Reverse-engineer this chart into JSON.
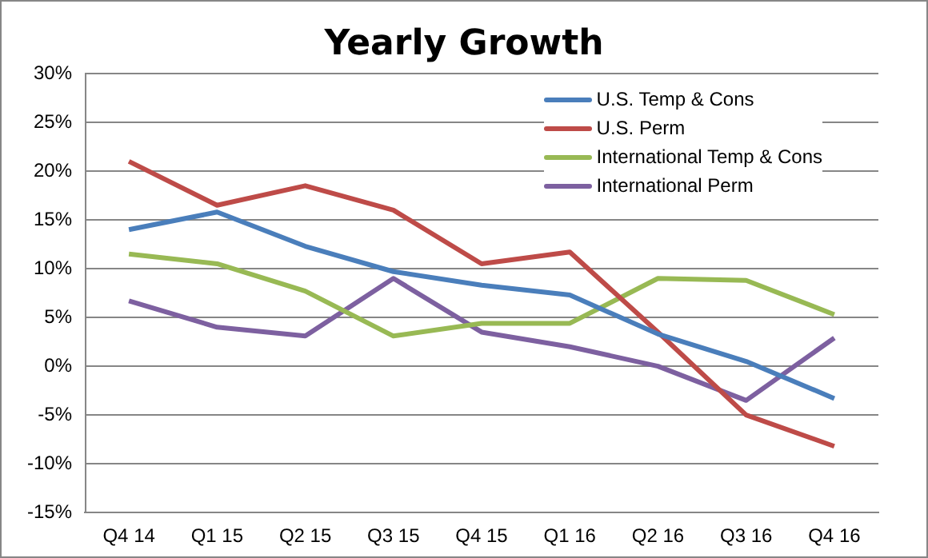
{
  "chart_data": {
    "type": "line",
    "title": "Yearly Growth",
    "categories": [
      "Q4 14",
      "Q1 15",
      "Q2 15",
      "Q3 15",
      "Q4 15",
      "Q1 16",
      "Q2 16",
      "Q3 16",
      "Q4 16"
    ],
    "series": [
      {
        "name": "U.S. Temp & Cons",
        "color": "#4a7ebb",
        "values": [
          14,
          15.8,
          12.3,
          9.7,
          8.3,
          7.3,
          3.3,
          0.5,
          -3.3
        ]
      },
      {
        "name": "U.S. Perm",
        "color": "#be4b48",
        "values": [
          21,
          16.5,
          18.5,
          16,
          10.5,
          11.7,
          3.5,
          -5,
          -8.2
        ]
      },
      {
        "name": "International Temp & Cons",
        "color": "#98b954",
        "values": [
          11.5,
          10.5,
          7.7,
          3.1,
          4.4,
          4.4,
          9,
          8.8,
          5.3
        ]
      },
      {
        "name": "International Perm",
        "color": "#7d60a0",
        "values": [
          6.7,
          4,
          3.1,
          9,
          3.5,
          2,
          0,
          -3.5,
          2.9
        ]
      }
    ],
    "ylim": [
      -15,
      30
    ],
    "yticks": [
      {
        "value": -15,
        "label": "-15%"
      },
      {
        "value": -10,
        "label": "-10%"
      },
      {
        "value": -5,
        "label": "-5%"
      },
      {
        "value": 0,
        "label": "0%"
      },
      {
        "value": 5,
        "label": "5%"
      },
      {
        "value": 10,
        "label": "10%"
      },
      {
        "value": 15,
        "label": "15%"
      },
      {
        "value": 20,
        "label": "20%"
      },
      {
        "value": 25,
        "label": "25%"
      },
      {
        "value": 30,
        "label": "30%"
      }
    ],
    "grid": "y",
    "legend": "top right",
    "marker": "none",
    "line_style": "solid"
  }
}
